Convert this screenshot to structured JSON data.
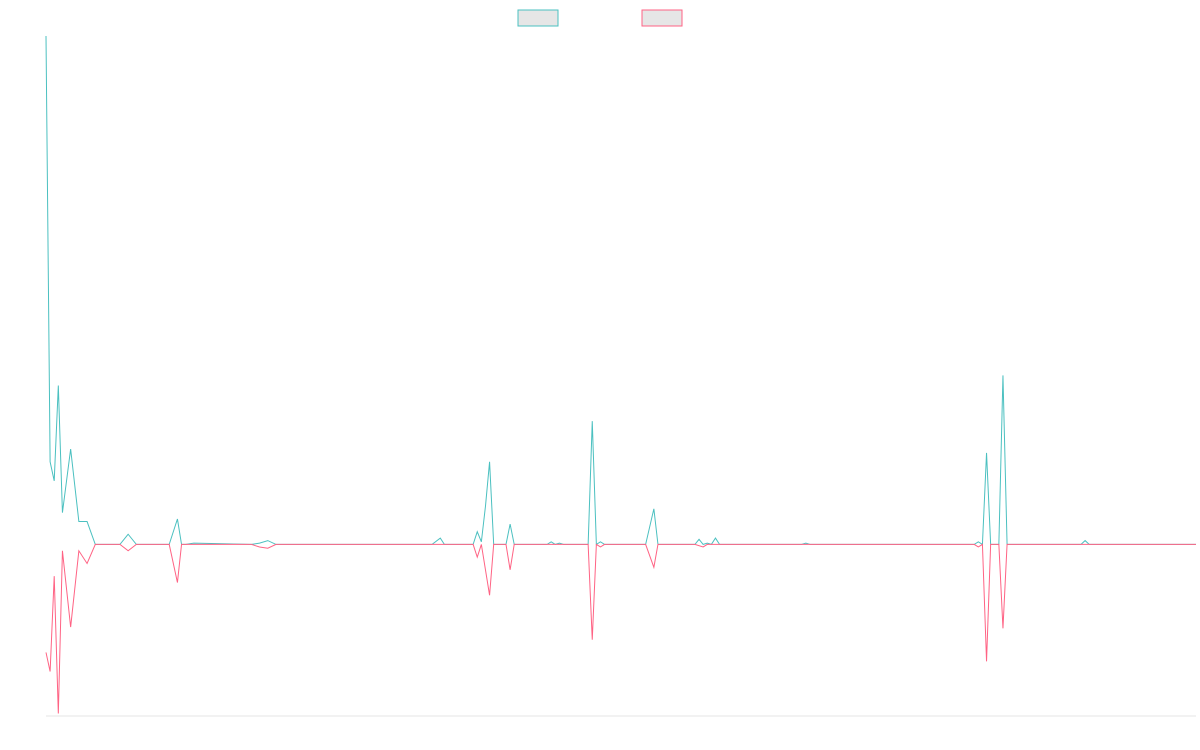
{
  "chart_data": {
    "type": "line",
    "title": "",
    "xlabel": "",
    "ylabel": "",
    "grid": false,
    "legend_position": "top-center",
    "x_index_count": 140,
    "ylim": [
      -1.35,
      4.0
    ],
    "series": [
      {
        "color": "#4bc0c0",
        "fill": "#e6e6e6",
        "points": [
          [
            0,
            4.0
          ],
          [
            0.5,
            0.65
          ],
          [
            1,
            0.5
          ],
          [
            1.5,
            1.25
          ],
          [
            2,
            0.25
          ],
          [
            3,
            0.75
          ],
          [
            4,
            0.18
          ],
          [
            5,
            0.18
          ],
          [
            6,
            0.0
          ],
          [
            7,
            0.0
          ],
          [
            8,
            0.0
          ],
          [
            9,
            0.0
          ],
          [
            10,
            0.08
          ],
          [
            11,
            0.0
          ],
          [
            15,
            0.0
          ],
          [
            16,
            0.2
          ],
          [
            16.5,
            0.0
          ],
          [
            17,
            0.0
          ],
          [
            18,
            0.01
          ],
          [
            25,
            0.0
          ],
          [
            26,
            0.01
          ],
          [
            27,
            0.03
          ],
          [
            28,
            0.0
          ],
          [
            47,
            0.0
          ],
          [
            48,
            0.05
          ],
          [
            48.5,
            0.0
          ],
          [
            52,
            0.0
          ],
          [
            52.5,
            0.1
          ],
          [
            53,
            0.02
          ],
          [
            53.5,
            0.3
          ],
          [
            54,
            0.65
          ],
          [
            54.5,
            0.0
          ],
          [
            56,
            0.0
          ],
          [
            56.5,
            0.16
          ],
          [
            57,
            0.0
          ],
          [
            61,
            0.0
          ],
          [
            61.5,
            0.02
          ],
          [
            62,
            0.0
          ],
          [
            62.5,
            0.01
          ],
          [
            63,
            0.0
          ],
          [
            66,
            0.0
          ],
          [
            66.5,
            0.97
          ],
          [
            67,
            0.0
          ],
          [
            67.5,
            0.02
          ],
          [
            68,
            0.0
          ],
          [
            73,
            0.0
          ],
          [
            74,
            0.28
          ],
          [
            74.5,
            0.0
          ],
          [
            79,
            0.0
          ],
          [
            79.5,
            0.04
          ],
          [
            80,
            0.0
          ],
          [
            80.5,
            0.01
          ],
          [
            81,
            0.0
          ],
          [
            81.5,
            0.05
          ],
          [
            82,
            0.0
          ],
          [
            92,
            0.0
          ],
          [
            92.5,
            0.01
          ],
          [
            93,
            0.0
          ],
          [
            113,
            0.0
          ],
          [
            113.5,
            0.02
          ],
          [
            114,
            0.0
          ],
          [
            114.5,
            0.72
          ],
          [
            115,
            0.0
          ],
          [
            116,
            0.0
          ],
          [
            116.5,
            1.33
          ],
          [
            117,
            0.0
          ],
          [
            118,
            0.0
          ],
          [
            126,
            0.0
          ],
          [
            126.5,
            0.03
          ],
          [
            127,
            0.0
          ],
          [
            139,
            0.0
          ],
          [
            140,
            0.0
          ]
        ]
      },
      {
        "color": "#ff6384",
        "fill": "#e6e6e6",
        "points": [
          [
            0,
            -0.85
          ],
          [
            0.5,
            -1.0
          ],
          [
            1,
            -0.25
          ],
          [
            1.5,
            -1.33
          ],
          [
            2,
            -0.05
          ],
          [
            3,
            -0.65
          ],
          [
            4,
            -0.05
          ],
          [
            5,
            -0.15
          ],
          [
            6,
            0.0
          ],
          [
            7,
            0.0
          ],
          [
            8,
            0.0
          ],
          [
            9,
            0.0
          ],
          [
            10,
            -0.05
          ],
          [
            11,
            0.0
          ],
          [
            15,
            0.0
          ],
          [
            16,
            -0.3
          ],
          [
            16.5,
            0.0
          ],
          [
            17,
            0.0
          ],
          [
            25,
            0.0
          ],
          [
            26,
            -0.02
          ],
          [
            27,
            -0.03
          ],
          [
            28,
            0.0
          ],
          [
            52,
            0.0
          ],
          [
            52.5,
            -0.1
          ],
          [
            53,
            0.0
          ],
          [
            54,
            -0.4
          ],
          [
            54.5,
            0.0
          ],
          [
            56,
            0.0
          ],
          [
            56.5,
            -0.2
          ],
          [
            57,
            0.0
          ],
          [
            66,
            0.0
          ],
          [
            66.5,
            -0.75
          ],
          [
            67,
            0.0
          ],
          [
            67.5,
            -0.02
          ],
          [
            68,
            0.0
          ],
          [
            73,
            0.0
          ],
          [
            74,
            -0.18
          ],
          [
            74.5,
            0.0
          ],
          [
            79,
            0.0
          ],
          [
            80,
            -0.02
          ],
          [
            80.5,
            0.0
          ],
          [
            113,
            0.0
          ],
          [
            113.5,
            -0.02
          ],
          [
            114,
            0.0
          ],
          [
            114.5,
            -0.92
          ],
          [
            115,
            0.0
          ],
          [
            116,
            0.0
          ],
          [
            116.5,
            -0.66
          ],
          [
            117,
            0.0
          ],
          [
            139,
            0.0
          ],
          [
            140,
            0.0
          ]
        ]
      }
    ]
  }
}
